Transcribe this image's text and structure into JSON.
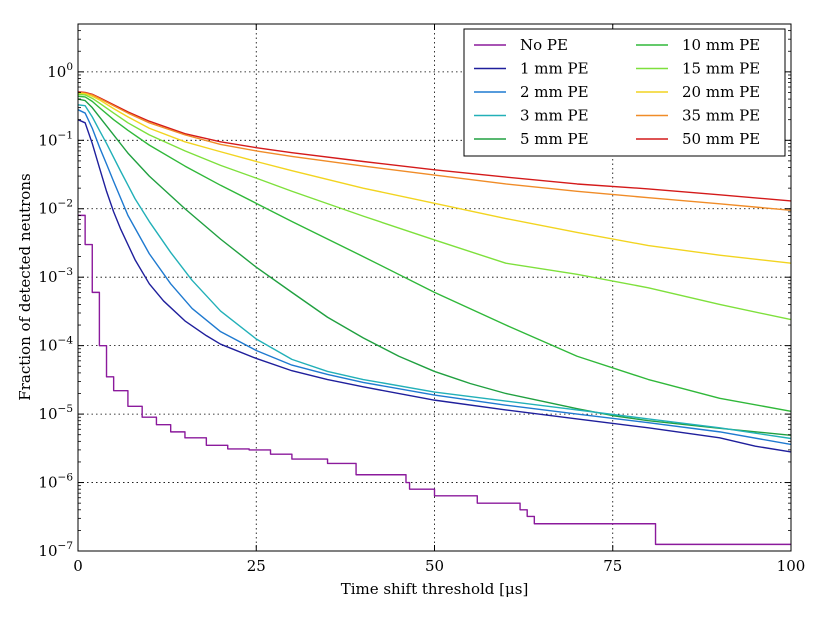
{
  "chart_data": {
    "type": "line",
    "title": "",
    "xlabel": "Time shift threshold [μs]",
    "ylabel": "Fraction of detected neutrons",
    "xlim": [
      0,
      100
    ],
    "ylim": [
      1e-07,
      5
    ],
    "yscale": "log",
    "grid": true,
    "legend_position": "top-right",
    "x_ticks": [
      {
        "value": 0,
        "label": "0"
      },
      {
        "value": 25,
        "label": "25"
      },
      {
        "value": 50,
        "label": "50"
      },
      {
        "value": 75,
        "label": "75"
      },
      {
        "value": 100,
        "label": "100"
      }
    ],
    "y_ticks": [
      {
        "value": 1e-07,
        "base": "10",
        "exp": "−7"
      },
      {
        "value": 1e-06,
        "base": "10",
        "exp": "−6"
      },
      {
        "value": 1e-05,
        "base": "10",
        "exp": "−5"
      },
      {
        "value": 0.0001,
        "base": "10",
        "exp": "−4"
      },
      {
        "value": 0.001,
        "base": "10",
        "exp": "−3"
      },
      {
        "value": 0.01,
        "base": "10",
        "exp": "−2"
      },
      {
        "value": 0.1,
        "base": "10",
        "exp": "−1"
      },
      {
        "value": 1,
        "base": "10",
        "exp": "0"
      }
    ],
    "series": [
      {
        "name": "No PE",
        "color": "#8b1a9c",
        "step": true,
        "x": [
          0,
          1,
          2,
          3,
          4,
          5,
          7,
          9,
          11,
          13,
          15,
          18,
          21,
          24,
          27,
          30,
          35,
          38,
          39,
          45,
          46,
          46.5,
          50,
          56,
          58,
          62,
          63,
          64,
          70,
          80,
          81,
          100
        ],
        "y": [
          0.008,
          0.003,
          0.0006,
          0.0001,
          3.5e-05,
          2.2e-05,
          1.3e-05,
          9e-06,
          7e-06,
          5.5e-06,
          4.5e-06,
          3.5e-06,
          3.1e-06,
          3e-06,
          2.6e-06,
          2.2e-06,
          1.9e-06,
          1.9e-06,
          1.3e-06,
          1.3e-06,
          1e-06,
          8e-07,
          6.4e-07,
          5e-07,
          5e-07,
          4e-07,
          3.2e-07,
          2.5e-07,
          2.5e-07,
          2.5e-07,
          1.25e-07,
          1.25e-07
        ]
      },
      {
        "name": "1 mm PE",
        "color": "#1f1f9c",
        "x": [
          0,
          1,
          2,
          3,
          4,
          5,
          6,
          8,
          10,
          12,
          15,
          18,
          20,
          25,
          30,
          35,
          40,
          50,
          60,
          70,
          80,
          90,
          95,
          100
        ],
        "y": [
          0.2,
          0.18,
          0.09,
          0.04,
          0.018,
          0.009,
          0.005,
          0.0018,
          0.0008,
          0.00045,
          0.00023,
          0.00014,
          0.000105,
          6.5e-05,
          4.3e-05,
          3.2e-05,
          2.5e-05,
          1.6e-05,
          1.15e-05,
          8.5e-06,
          6.3e-06,
          4.5e-06,
          3.4e-06,
          2.8e-06
        ]
      },
      {
        "name": "2 mm PE",
        "color": "#1f7ad0",
        "x": [
          0,
          1,
          2,
          3,
          4,
          5,
          7,
          10,
          13,
          16,
          20,
          25,
          30,
          35,
          40,
          50,
          60,
          70,
          80,
          90,
          100
        ],
        "y": [
          0.28,
          0.25,
          0.15,
          0.08,
          0.045,
          0.025,
          0.008,
          0.0022,
          0.0008,
          0.00035,
          0.00016,
          8.5e-05,
          5.2e-05,
          3.8e-05,
          2.9e-05,
          1.9e-05,
          1.35e-05,
          1e-05,
          7.5e-06,
          5.5e-06,
          3.6e-06
        ]
      },
      {
        "name": "3 mm PE",
        "color": "#22b0b8",
        "x": [
          0,
          1,
          2,
          3,
          4,
          6,
          8,
          10,
          13,
          16,
          20,
          25,
          30,
          35,
          40,
          50,
          60,
          70,
          80,
          90,
          100
        ],
        "y": [
          0.33,
          0.32,
          0.22,
          0.14,
          0.09,
          0.035,
          0.014,
          0.0065,
          0.0023,
          0.0009,
          0.00032,
          0.000125,
          6.3e-05,
          4.2e-05,
          3.2e-05,
          2.1e-05,
          1.55e-05,
          1.15e-05,
          8.5e-06,
          6.3e-06,
          4.4e-06
        ]
      },
      {
        "name": "5 mm PE",
        "color": "#20a040",
        "x": [
          0,
          1,
          2,
          3,
          5,
          7,
          10,
          15,
          20,
          25,
          30,
          35,
          40,
          45,
          50,
          55,
          60,
          65,
          70,
          75,
          80,
          90,
          100
        ],
        "y": [
          0.4,
          0.38,
          0.3,
          0.22,
          0.12,
          0.065,
          0.03,
          0.01,
          0.0036,
          0.0014,
          0.0006,
          0.00026,
          0.00013,
          7e-05,
          4.2e-05,
          2.8e-05,
          2e-05,
          1.55e-05,
          1.2e-05,
          9.5e-06,
          8e-06,
          6.2e-06,
          4.9e-06
        ]
      },
      {
        "name": "10 mm PE",
        "color": "#30b83a",
        "x": [
          0,
          1,
          2,
          3,
          5,
          7,
          10,
          15,
          20,
          25,
          30,
          40,
          50,
          60,
          70,
          80,
          90,
          100
        ],
        "y": [
          0.44,
          0.43,
          0.37,
          0.3,
          0.2,
          0.14,
          0.085,
          0.042,
          0.022,
          0.012,
          0.0065,
          0.002,
          0.0006,
          0.0002,
          7e-05,
          3.2e-05,
          1.7e-05,
          1.1e-05
        ]
      },
      {
        "name": "15 mm PE",
        "color": "#7ee03c",
        "x": [
          0,
          1,
          2,
          3,
          5,
          7,
          10,
          15,
          20,
          25,
          30,
          40,
          50,
          60,
          70,
          80,
          90,
          100
        ],
        "y": [
          0.47,
          0.46,
          0.41,
          0.35,
          0.25,
          0.18,
          0.12,
          0.07,
          0.043,
          0.028,
          0.018,
          0.0078,
          0.0035,
          0.0016,
          0.0011,
          0.0007,
          0.0004,
          0.00024
        ]
      },
      {
        "name": "20 mm PE",
        "color": "#f2d420",
        "x": [
          0,
          1,
          2,
          3,
          5,
          7,
          10,
          15,
          20,
          25,
          30,
          40,
          50,
          60,
          70,
          80,
          90,
          100
        ],
        "y": [
          0.49,
          0.48,
          0.44,
          0.39,
          0.29,
          0.22,
          0.15,
          0.095,
          0.068,
          0.049,
          0.036,
          0.02,
          0.012,
          0.0072,
          0.0045,
          0.0029,
          0.0021,
          0.0016
        ]
      },
      {
        "name": "35 mm PE",
        "color": "#f08c28",
        "x": [
          0,
          1,
          2,
          3,
          5,
          7,
          10,
          15,
          20,
          25,
          30,
          40,
          50,
          60,
          70,
          80,
          90,
          100
        ],
        "y": [
          0.5,
          0.49,
          0.46,
          0.41,
          0.32,
          0.25,
          0.18,
          0.12,
          0.087,
          0.07,
          0.058,
          0.042,
          0.031,
          0.023,
          0.018,
          0.0145,
          0.0118,
          0.0095
        ]
      },
      {
        "name": "50 mm PE",
        "color": "#d41a1a",
        "x": [
          0,
          1,
          2,
          3,
          5,
          7,
          10,
          15,
          20,
          25,
          30,
          40,
          50,
          60,
          70,
          80,
          90,
          100
        ],
        "y": [
          0.51,
          0.5,
          0.47,
          0.42,
          0.33,
          0.26,
          0.19,
          0.125,
          0.095,
          0.078,
          0.066,
          0.049,
          0.037,
          0.029,
          0.023,
          0.0195,
          0.016,
          0.013
        ]
      }
    ]
  }
}
